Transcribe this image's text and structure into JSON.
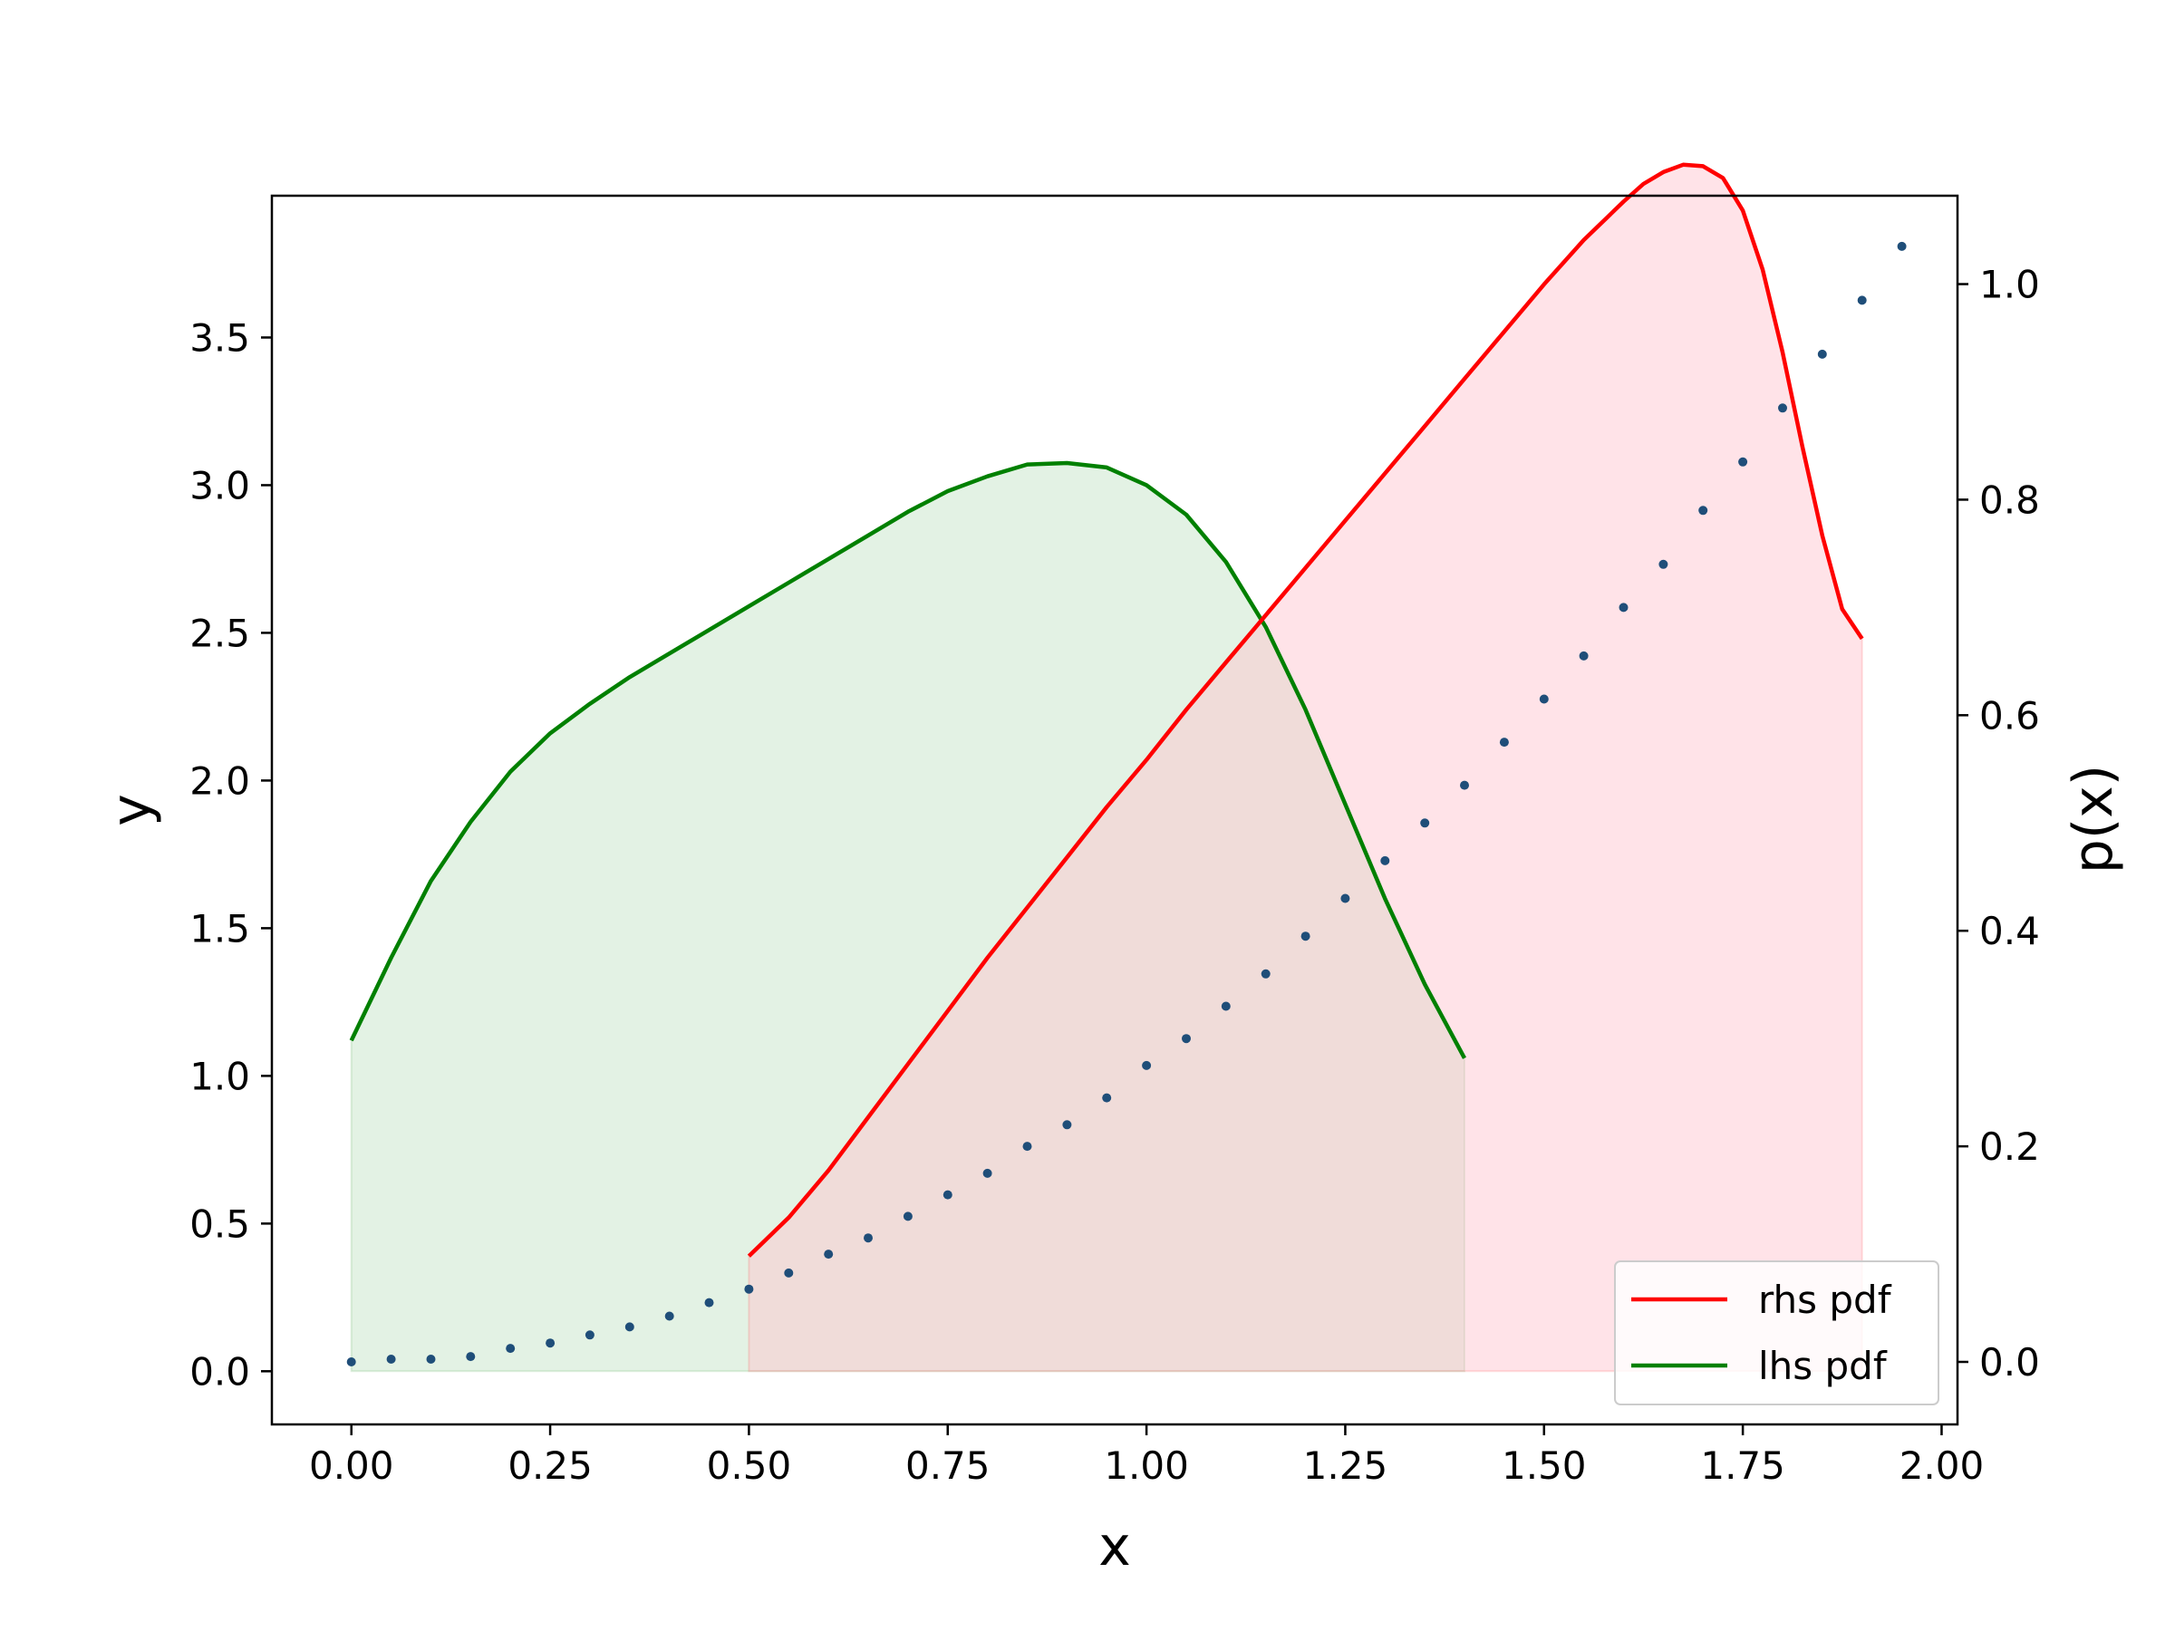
{
  "chart_data": {
    "type": "line",
    "xlabel": "x",
    "ylabel": "y",
    "y2label": "p(x)",
    "xlim": [
      -0.1,
      2.02
    ],
    "ylim": [
      -0.18,
      3.98
    ],
    "y2lim": [
      -0.058,
      1.082
    ],
    "xticks": [
      "0.00",
      "0.25",
      "0.50",
      "0.75",
      "1.00",
      "1.25",
      "1.50",
      "1.75",
      "2.00"
    ],
    "xtick_values": [
      0.0,
      0.25,
      0.5,
      0.75,
      1.0,
      1.25,
      1.5,
      1.75,
      2.0
    ],
    "yticks": [
      "0.0",
      "0.5",
      "1.0",
      "1.5",
      "2.0",
      "2.5",
      "3.0",
      "3.5"
    ],
    "ytick_values": [
      0.0,
      0.5,
      1.0,
      1.5,
      2.0,
      2.5,
      3.0,
      3.5
    ],
    "y2ticks": [
      "0.0",
      "0.2",
      "0.4",
      "0.6",
      "0.8",
      "1.0"
    ],
    "y2tick_values": [
      0.0,
      0.2,
      0.4,
      0.6,
      0.8,
      1.0
    ],
    "grid": false,
    "legend_position": "lower right",
    "series": [
      {
        "name": "rhs pdf",
        "color": "#ff0000",
        "fill": "#ffc0cb",
        "axis": "left",
        "x": [
          0.5,
          0.55,
          0.6,
          0.65,
          0.7,
          0.75,
          0.8,
          0.85,
          0.9,
          0.95,
          1.0,
          1.05,
          1.1,
          1.15,
          1.2,
          1.25,
          1.3,
          1.35,
          1.4,
          1.45,
          1.5,
          1.55,
          1.6,
          1.625,
          1.65,
          1.675,
          1.7,
          1.725,
          1.75,
          1.775,
          1.8,
          1.825,
          1.85,
          1.875,
          1.9
        ],
        "y": [
          0.39,
          0.52,
          0.68,
          0.86,
          1.04,
          1.22,
          1.4,
          1.57,
          1.74,
          1.91,
          2.07,
          2.24,
          2.4,
          2.56,
          2.72,
          2.88,
          3.04,
          3.2,
          3.36,
          3.52,
          3.68,
          3.83,
          3.96,
          4.02,
          4.06,
          4.085,
          4.08,
          4.04,
          3.93,
          3.73,
          3.45,
          3.13,
          2.83,
          2.58,
          2.48
        ]
      },
      {
        "name": "lhs pdf",
        "color": "#008000",
        "fill": "#c8e6c9",
        "axis": "left",
        "x": [
          0.0,
          0.05,
          0.1,
          0.15,
          0.2,
          0.25,
          0.3,
          0.35,
          0.4,
          0.45,
          0.5,
          0.55,
          0.6,
          0.65,
          0.7,
          0.75,
          0.8,
          0.85,
          0.9,
          0.95,
          1.0,
          1.05,
          1.1,
          1.15,
          1.2,
          1.25,
          1.3,
          1.35,
          1.4
        ],
        "y": [
          1.12,
          1.4,
          1.66,
          1.86,
          2.03,
          2.16,
          2.26,
          2.35,
          2.43,
          2.51,
          2.59,
          2.67,
          2.75,
          2.83,
          2.91,
          2.98,
          3.03,
          3.07,
          3.075,
          3.06,
          3.0,
          2.9,
          2.74,
          2.52,
          2.24,
          1.92,
          1.6,
          1.31,
          1.06
        ]
      },
      {
        "name": "",
        "color": "#1f4e79",
        "axis": "right",
        "markers_only": true,
        "x": [
          0.0,
          0.05,
          0.1,
          0.15,
          0.2,
          0.25,
          0.3,
          0.35,
          0.4,
          0.45,
          0.5,
          0.55,
          0.6,
          0.65,
          0.7,
          0.75,
          0.8,
          0.85,
          0.9,
          0.95,
          1.0,
          1.05,
          1.1,
          1.15,
          1.2,
          1.25,
          1.3,
          1.35,
          1.4,
          1.45,
          1.5,
          1.55,
          1.6,
          1.65,
          1.7,
          1.75,
          1.8,
          1.85,
          1.9,
          1.95
        ],
        "y": [
          0.0,
          0.0025,
          0.0025,
          0.005,
          0.0125,
          0.0175,
          0.025,
          0.0325,
          0.0425,
          0.055,
          0.0675,
          0.0825,
          0.1,
          0.115,
          0.135,
          0.155,
          0.175,
          0.2,
          0.22,
          0.245,
          0.275,
          0.3,
          0.33,
          0.36,
          0.395,
          0.43,
          0.465,
          0.5,
          0.535,
          0.575,
          0.615,
          0.655,
          0.7,
          0.74,
          0.79,
          0.835,
          0.885,
          0.935,
          0.985,
          1.035
        ]
      }
    ]
  }
}
